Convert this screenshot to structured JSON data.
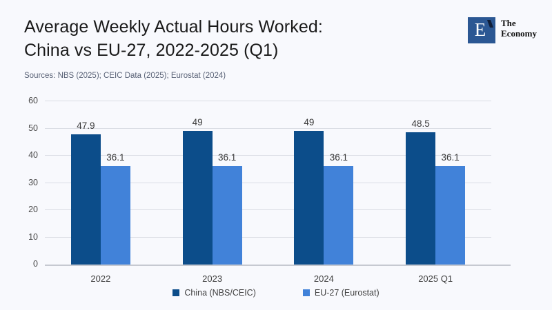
{
  "page": {
    "background": "#F8F9FD"
  },
  "header": {
    "title_line1": "Average Weekly Actual Hours Worked:",
    "title_line2": "China vs EU-27, 2022-2025 (Q1)",
    "sources": "Sources: NBS (2025); CEIC Data (2025); Eurostat (2024)"
  },
  "logo": {
    "letter": "E",
    "text_line1": "The",
    "text_line2": "Economy",
    "square_color": "#2B5793",
    "tick_color": "#101E38"
  },
  "chart_data": {
    "type": "bar",
    "title": "Average Weekly Actual Hours Worked: China vs EU-27, 2022-2025 (Q1)",
    "categories": [
      "2022",
      "2023",
      "2024",
      "2025 Q1"
    ],
    "series": [
      {
        "name": "China (NBS/CEIC)",
        "key": "china",
        "color": "#0C4D8A",
        "values": [
          47.9,
          49,
          49,
          48.5
        ],
        "labels": [
          "47.9",
          "49",
          "49",
          "48.5"
        ]
      },
      {
        "name": "EU-27 (Eurostat)",
        "key": "eu27",
        "color": "#4182D9",
        "values": [
          36.1,
          36.1,
          36.1,
          36.1
        ],
        "labels": [
          "36.1",
          "36.1",
          "36.1",
          "36.1"
        ]
      }
    ],
    "xlabel": "",
    "ylabel": "",
    "ylim": [
      0,
      60
    ],
    "yticks": [
      0,
      10,
      20,
      30,
      40,
      50,
      60
    ],
    "grid": true,
    "legend_position": "bottom"
  }
}
